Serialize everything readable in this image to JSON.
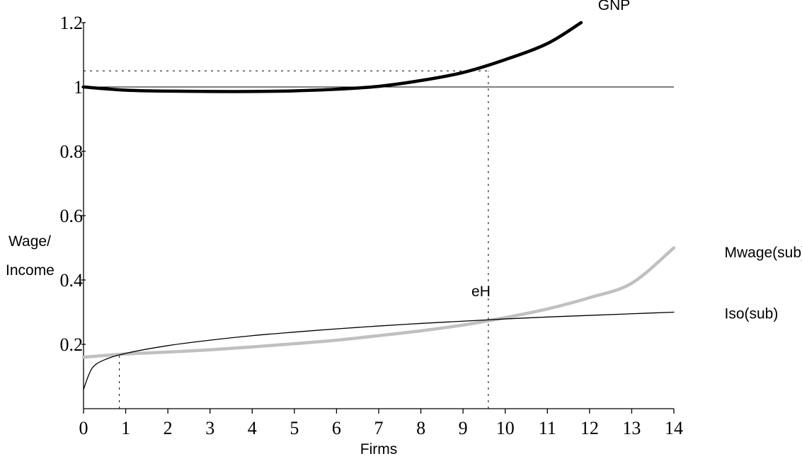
{
  "chart_data": {
    "type": "line",
    "title": "",
    "xlabel": "Firms",
    "ylabel_lines": [
      "Wage/",
      "Income"
    ],
    "xlim": [
      0,
      14
    ],
    "ylim": [
      0,
      1.2
    ],
    "x_ticks": [
      0,
      1,
      2,
      3,
      4,
      5,
      6,
      7,
      8,
      9,
      10,
      11,
      12,
      13,
      14
    ],
    "x_tick_labels": [
      "0",
      "1",
      "2",
      "3",
      "4",
      "5",
      "6",
      "7",
      "8",
      "9",
      "10",
      "11",
      "12",
      "13",
      "14"
    ],
    "y_ticks": [
      0.2,
      0.4,
      0.6,
      0.8,
      1,
      1.2
    ],
    "y_tick_labels": [
      "0.2",
      "0.4",
      "0.6",
      "0.8",
      "1",
      "1.2"
    ],
    "grid": false,
    "series": [
      {
        "name": "GNP",
        "color": "#000000",
        "style": "thick",
        "x": [
          0,
          1,
          2,
          3,
          4,
          5,
          6,
          7,
          8,
          9,
          10,
          11,
          11.8
        ],
        "y": [
          1.0,
          0.99,
          0.987,
          0.986,
          0.986,
          0.988,
          0.993,
          1.002,
          1.02,
          1.045,
          1.085,
          1.135,
          1.2
        ]
      },
      {
        "name": "Mwage(sub)",
        "color": "#c0c0c0",
        "style": "thick",
        "x": [
          0,
          1,
          2,
          3,
          4,
          5,
          6,
          7,
          8,
          9,
          10,
          11,
          12,
          13,
          14
        ],
        "y": [
          0.16,
          0.17,
          0.176,
          0.183,
          0.192,
          0.202,
          0.213,
          0.227,
          0.242,
          0.26,
          0.283,
          0.31,
          0.345,
          0.39,
          0.5
        ]
      },
      {
        "name": "Iso(sub)",
        "color": "#000000",
        "style": "thin",
        "x": [
          0,
          0.2,
          0.5,
          1,
          2,
          3,
          4,
          5,
          6,
          7,
          8,
          9,
          10,
          11,
          12,
          13,
          14
        ],
        "y": [
          0.06,
          0.125,
          0.152,
          0.172,
          0.196,
          0.213,
          0.227,
          0.238,
          0.248,
          0.257,
          0.265,
          0.272,
          0.279,
          0.285,
          0.29,
          0.295,
          0.3
        ]
      }
    ],
    "reference_lines": [
      {
        "type": "horizontal",
        "y": 1.0,
        "x_from": 0,
        "x_to": 14,
        "style": "solid-thin"
      },
      {
        "type": "horizontal",
        "y": 1.05,
        "x_from": 0,
        "x_to": 9.6,
        "style": "dotted"
      },
      {
        "type": "vertical",
        "x": 9.6,
        "y_from": 0,
        "y_to": 1.05,
        "style": "dotted"
      },
      {
        "type": "vertical",
        "x": 0.85,
        "y_from": 0,
        "y_to": 0.17,
        "style": "dotted"
      }
    ],
    "annotations": [
      {
        "text": "eH",
        "x": 9.2,
        "y": 0.35
      },
      {
        "text": "GNP",
        "x": 12.2,
        "y": 1.24
      },
      {
        "text": "Mwage(sub)",
        "x": 15.2,
        "y": 0.47
      },
      {
        "text": "Iso(sub)",
        "x": 15.2,
        "y": 0.28
      }
    ]
  }
}
